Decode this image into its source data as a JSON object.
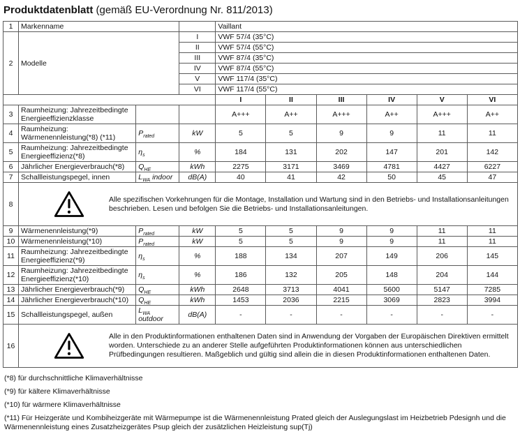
{
  "title": {
    "main": "Produktdatenblatt",
    "suffix": " (gemäß EU-Verordnung Nr. 811/2013)"
  },
  "colors": {
    "border": "#5a5a5a",
    "text": "#141414",
    "background": "#ffffff"
  },
  "icons": {
    "warning": "warning-triangle-icon"
  },
  "table": {
    "brand_row": {
      "num": "1",
      "label": "Markenname",
      "value": "Vaillant"
    },
    "models_row": {
      "num": "2",
      "label": "Modelle",
      "models": [
        {
          "numeral": "I",
          "name": "VWF 57/4 (35°C)"
        },
        {
          "numeral": "II",
          "name": "VWF 57/4 (55°C)"
        },
        {
          "numeral": "III",
          "name": "VWF 87/4 (35°C)"
        },
        {
          "numeral": "IV",
          "name": "VWF 87/4 (55°C)"
        },
        {
          "numeral": "V",
          "name": "VWF 117/4 (35°C)"
        },
        {
          "numeral": "VI",
          "name": "VWF 117/4 (55°C)"
        }
      ]
    },
    "col_headers": [
      "I",
      "II",
      "III",
      "IV",
      "V",
      "VI"
    ],
    "rows": [
      {
        "num": "3",
        "label": "Raumheizung: Jahrezeitbedingte Energieeffizienzklasse",
        "sym": null,
        "unit": "",
        "values": [
          "A+++",
          "A++",
          "A+++",
          "A++",
          "A+++",
          "A++"
        ],
        "tall": true
      },
      {
        "num": "4",
        "label": "Raumheizung: Wärmenennleistung(*8) (*11)",
        "sym": {
          "base": "P",
          "sub": "rated",
          "suffix": ""
        },
        "unit": "kW",
        "values": [
          "5",
          "5",
          "9",
          "9",
          "11",
          "11"
        ],
        "tall": true
      },
      {
        "num": "5",
        "label": "Raumheizung: Jahrezeitbedingte Energieeffizienz(*8)",
        "sym": {
          "base": "η",
          "sub": "s",
          "suffix": ""
        },
        "unit": "%",
        "values": [
          "184",
          "131",
          "202",
          "147",
          "201",
          "142"
        ],
        "tall": true
      },
      {
        "num": "6",
        "label": "Jährlicher Energieverbrauch(*8)",
        "sym": {
          "base": "Q",
          "sub": "HE",
          "suffix": ""
        },
        "unit": "kWh",
        "values": [
          "2275",
          "3171",
          "3469",
          "4781",
          "4427",
          "6227"
        ]
      },
      {
        "num": "7",
        "label": "Schallleistungspegel, innen",
        "sym": {
          "base": "L",
          "sub": "WA",
          "suffix": " indoor"
        },
        "unit": "dB(A)",
        "values": [
          "40",
          "41",
          "42",
          "50",
          "45",
          "47"
        ]
      },
      {
        "num": "8",
        "warning": "Alle spezifischen Vorkehrungen für die Montage, Installation und Wartung sind in den Betriebs- und Installationsanleitungen beschrieben. Lesen und befolgen Sie die Betriebs- und Installationsanleitungen."
      },
      {
        "num": "9",
        "label": "Wärmenennleistung(*9)",
        "sym": {
          "base": "P",
          "sub": "rated",
          "suffix": ""
        },
        "unit": "kW",
        "values": [
          "5",
          "5",
          "9",
          "9",
          "11",
          "11"
        ]
      },
      {
        "num": "10",
        "label": "Wärmenennleistung(*10)",
        "sym": {
          "base": "P",
          "sub": "rated",
          "suffix": ""
        },
        "unit": "kW",
        "values": [
          "5",
          "5",
          "9",
          "9",
          "11",
          "11"
        ]
      },
      {
        "num": "11",
        "label": "Raumheizung: Jahrezeitbedingte Energieeffizienz(*9)",
        "sym": {
          "base": "η",
          "sub": "s",
          "suffix": ""
        },
        "unit": "%",
        "values": [
          "188",
          "134",
          "207",
          "149",
          "206",
          "145"
        ],
        "tall": true
      },
      {
        "num": "12",
        "label": "Raumheizung: Jahrezeitbedingte Energieeffizienz(*10)",
        "sym": {
          "base": "η",
          "sub": "s",
          "suffix": ""
        },
        "unit": "%",
        "values": [
          "186",
          "132",
          "205",
          "148",
          "204",
          "144"
        ],
        "tall": true
      },
      {
        "num": "13",
        "label": "Jährlicher Energieverbrauch(*9)",
        "sym": {
          "base": "Q",
          "sub": "HE",
          "suffix": ""
        },
        "unit": "kWh",
        "values": [
          "2648",
          "3713",
          "4041",
          "5600",
          "5147",
          "7285"
        ]
      },
      {
        "num": "14",
        "label": "Jährlicher Energieverbrauch(*10)",
        "sym": {
          "base": "Q",
          "sub": "HE",
          "suffix": ""
        },
        "unit": "kWh",
        "values": [
          "1453",
          "2036",
          "2215",
          "3069",
          "2823",
          "3994"
        ]
      },
      {
        "num": "15",
        "label": "Schallleistungspegel, außen",
        "sym": {
          "base": "L",
          "sub": "WA",
          "suffix": " outdoor"
        },
        "unit": "dB(A)",
        "values": [
          "-",
          "-",
          "-",
          "-",
          "-",
          "-"
        ]
      },
      {
        "num": "16",
        "warning": "Alle in den Produktinformationen enthaltenen Daten sind in Anwendung der Vorgaben der Europäischen Direktiven ermittelt worden. Unterschiede zu an anderer Stelle aufgeführten Produktinformationen können aus unterschiedlichen Prüfbedingungen resultieren. Maßgeblich und gültig sind allein die in diesen Produktinformationen enthaltenen Daten."
      }
    ]
  },
  "footnotes": [
    "(*8) für durchschnittliche Klimaverhältnisse",
    "(*9) für kältere Klimaverhältnisse",
    "(*10) für wärmere Klimaverhältnisse",
    "(*11) Für Heizgeräte und Kombiheizgeräte mit Wärmepumpe ist die Wärmenennleistung Prated gleich der Auslegungslast im Heizbetrieb Pdesignh und die Wärmenennleistung eines Zusatzheizgerätes Psup gleich der zusätzlichen Heizleistung sup(Tj)"
  ]
}
